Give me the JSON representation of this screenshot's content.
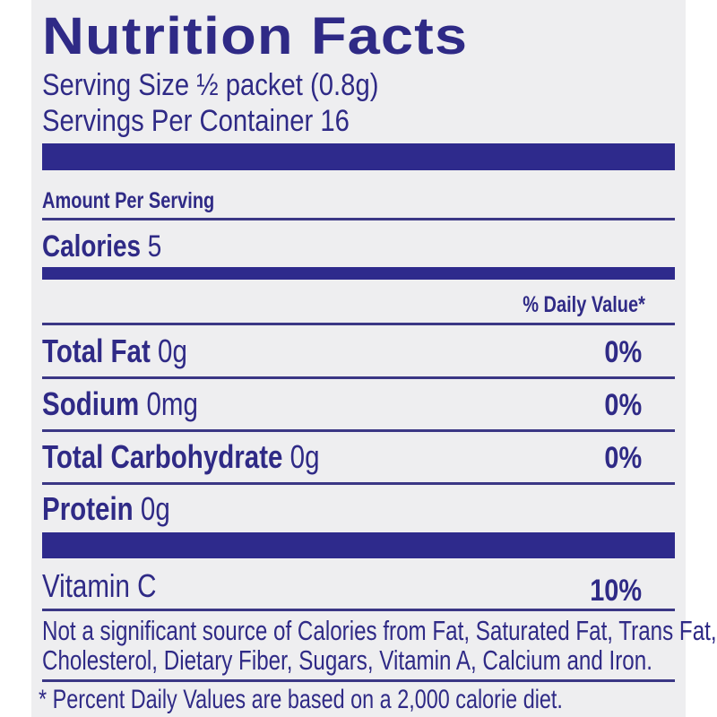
{
  "label": {
    "title": "Nutrition Facts",
    "serving_size": "Serving Size ½ packet (0.8g)",
    "servings_per_container": "Servings Per Container 16",
    "amount_per_serving": "Amount Per Serving",
    "calories": {
      "label": "Calories",
      "value": "5"
    },
    "daily_value_header": "% Daily Value*",
    "nutrients": [
      {
        "label": "Total Fat",
        "amount": "0g",
        "dv": "0%"
      },
      {
        "label": "Sodium",
        "amount": "0mg",
        "dv": "0%"
      },
      {
        "label": "Total Carbohydrate",
        "amount": "0g",
        "dv": "0%"
      },
      {
        "label": "Protein",
        "amount": "0g",
        "dv": ""
      }
    ],
    "vitamin": {
      "label": "Vitamin C",
      "dv": "10%"
    },
    "not_significant_line1": "Not a significant source of Calories from Fat, Saturated Fat, Trans Fat,",
    "not_significant_line2": "Cholesterol, Dietary Fiber, Sugars, Vitamin A, Calcium and Iron.",
    "footnote": "* Percent Daily Values are based on a 2,000 calorie diet."
  },
  "colors": {
    "ink": "#2e2a8c",
    "background": "#eeeef0"
  }
}
